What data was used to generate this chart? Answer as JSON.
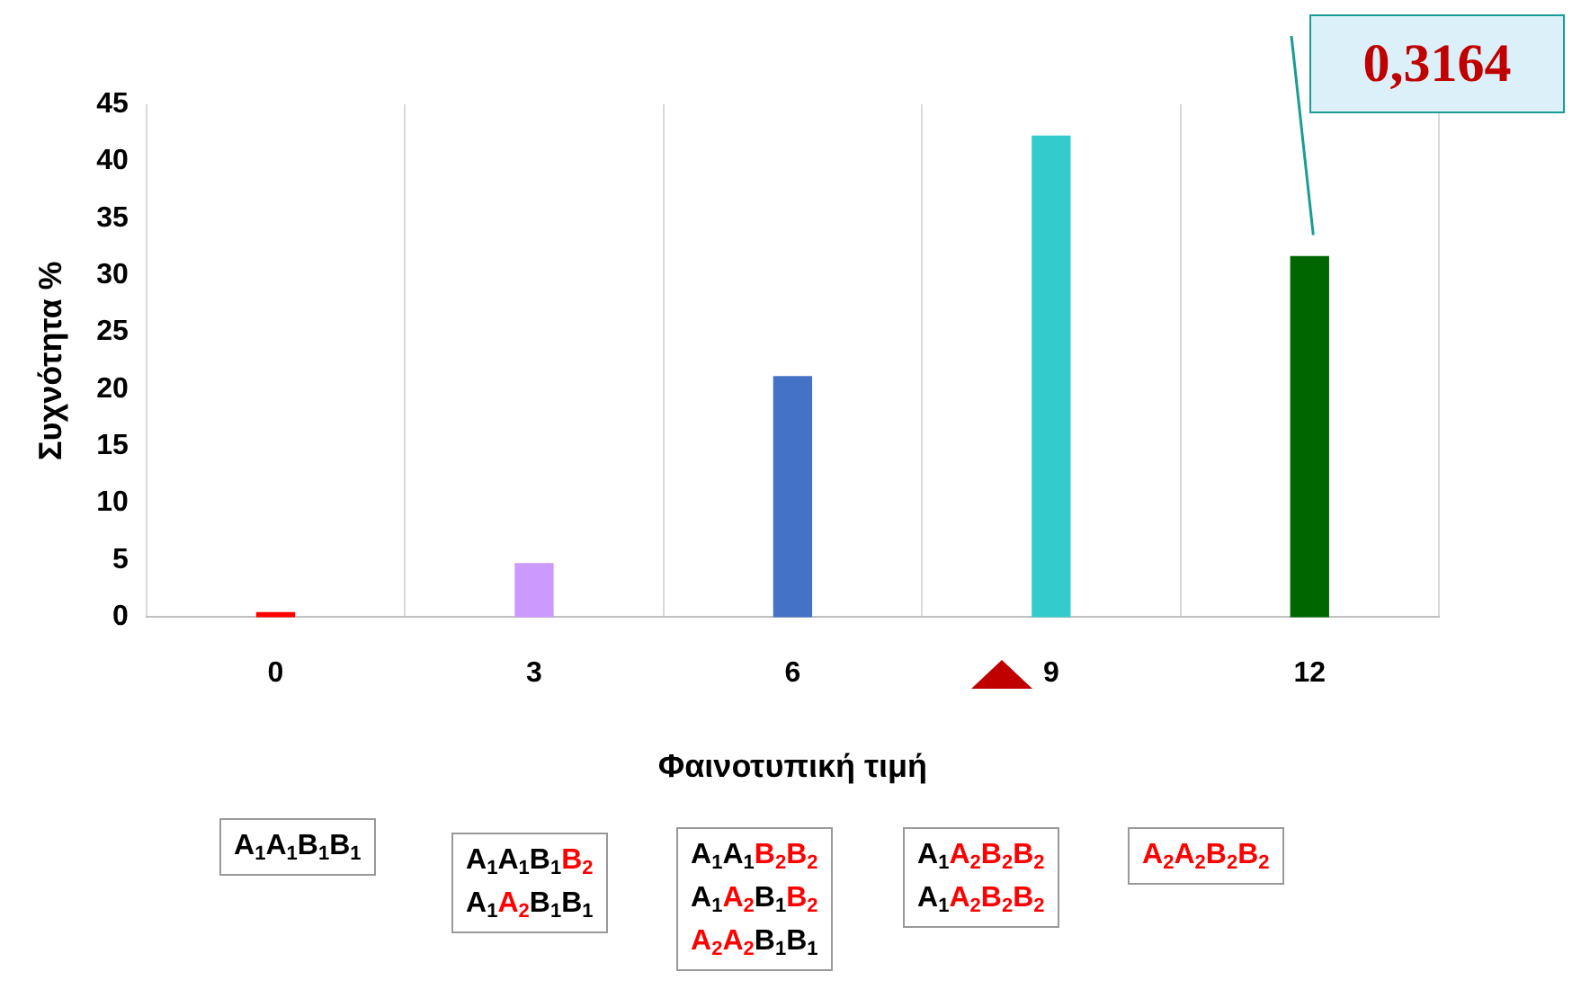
{
  "chart_data": {
    "type": "bar",
    "xlabel": "Φαινοτυπική τιμή",
    "ylabel": "Συχνότητα %",
    "categories": [
      "0",
      "3",
      "6",
      "9",
      "12"
    ],
    "values": [
      0.4,
      4.7,
      21.1,
      42.2,
      31.64
    ],
    "colors": [
      "#ff0000",
      "#cc99ff",
      "#4472c4",
      "#33cccc",
      "#006600"
    ],
    "ylim": [
      0,
      45
    ],
    "yticks": [
      0,
      5,
      10,
      15,
      20,
      25,
      30,
      35,
      40,
      45
    ],
    "grid": "x",
    "legend": false,
    "annotations": [
      "0,3164",
      "A$_{1}$A$_{1}$B$_{1}$B$_{1}$",
      "A$_{1}$A$_{1}$B$_{1}$B$_{2}$\nA$_{1}$A$_{2}$B$_{1}$B$_{1}$",
      "A$_{1}$A$_{1}$B$_{2}$B$_{2}$\nA$_{1}$A$_{2}$B$_{1}$B$_{2}$\nA$_{2}$A$_{2}$B$_{1}$B$_{1}$",
      "A$_{1}$A$_{2}$B$_{2}$B$_{2}$\nA$_{1}$A$_{2}$B$_{2}$B$_{2}$",
      "A$_{2}$A$_{2}$B$_{2}$B$_{2}$"
    ]
  }
}
